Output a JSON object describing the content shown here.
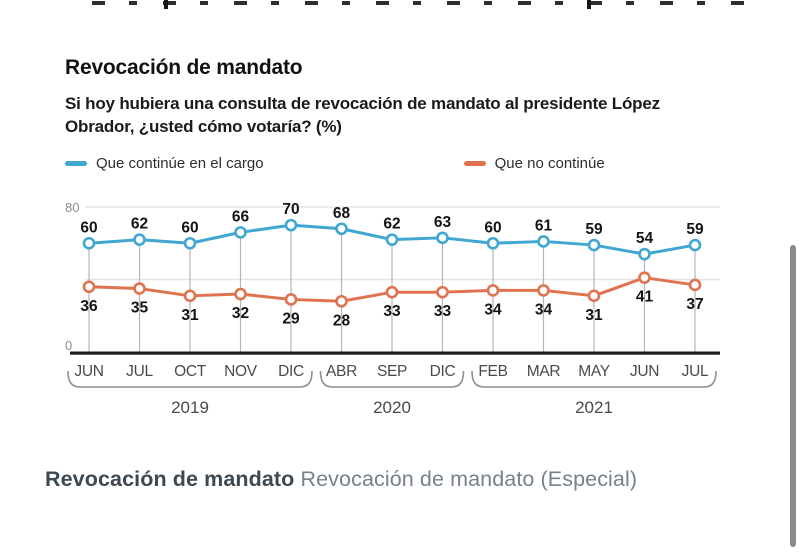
{
  "chart": {
    "title": "Revocación de mandato",
    "subtitle": "Si hoy hubiera una consulta de revocación de mandato al presidente López Obrador, ¿usted cómo votaría?  (%)"
  },
  "chart_data": {
    "type": "line",
    "categories": [
      "JUN",
      "JUL",
      "OCT",
      "NOV",
      "DIC",
      "ABR",
      "SEP",
      "DIC",
      "FEB",
      "MAR",
      "MAY",
      "JUN",
      "JUL"
    ],
    "year_groups": [
      {
        "label": "2019",
        "from": 0,
        "to": 4
      },
      {
        "label": "2020",
        "from": 5,
        "to": 7
      },
      {
        "label": "2021",
        "from": 8,
        "to": 12
      }
    ],
    "series": [
      {
        "name": "Que continúe en el cargo",
        "color": "#3fa7d1",
        "values": [
          60,
          62,
          60,
          66,
          70,
          68,
          62,
          63,
          60,
          61,
          59,
          54,
          59
        ]
      },
      {
        "name": "Que no continúe",
        "color": "#e0734f",
        "values": [
          36,
          35,
          31,
          32,
          29,
          28,
          33,
          33,
          34,
          34,
          31,
          41,
          37
        ]
      }
    ],
    "ylim": [
      0,
      80
    ],
    "ytick_labels": [
      "80",
      "0"
    ],
    "gridline_values": [
      80,
      40
    ],
    "grid": true,
    "legend_position": "top",
    "marker": "open-circle",
    "value_labels": true
  },
  "colors": {
    "grid": "#e4e4e4",
    "drop_line": "#b5b5b5",
    "axis_line": "#1c1c1c",
    "tick_text": "#8f8f8f",
    "category_text": "#4a4a4a",
    "value_label_text": "#141414",
    "bracket": "#8f8f8f"
  },
  "caption": {
    "bold_part": "Revocación de mandato",
    "regular_part": "Revocación de mandato (Especial)"
  }
}
